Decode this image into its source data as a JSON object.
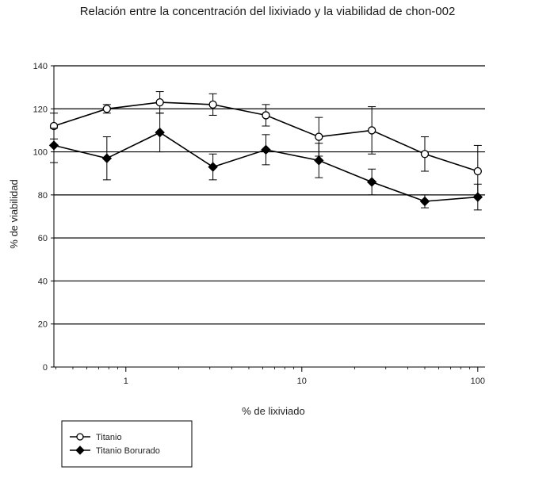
{
  "chart_data": {
    "type": "line",
    "title": "Relación entre la concentración del lixiviado y la viabilidad de chon-002",
    "xlabel": "% de lixiviado",
    "ylabel": "% de viabilidad",
    "x_scale": "log",
    "xlim": [
      0.39,
      110
    ],
    "ylim": [
      0,
      140
    ],
    "x_ticks": [
      1,
      10,
      100
    ],
    "x_tick_labels": [
      "1",
      "10",
      "100"
    ],
    "y_ticks": [
      0,
      20,
      40,
      60,
      80,
      100,
      120,
      140
    ],
    "y_tick_labels": [
      "0",
      "20",
      "40",
      "60",
      "80",
      "100",
      "120",
      "140"
    ],
    "grid": "horizontal",
    "legend_position": "bottom-left, below plot",
    "x": [
      0.39,
      0.78,
      1.56,
      3.125,
      6.25,
      12.5,
      25,
      50,
      100
    ],
    "series": [
      {
        "name": "Titanio",
        "marker": "open-circle",
        "values": [
          112,
          120,
          123,
          122,
          117,
          107,
          110,
          99,
          91
        ],
        "errors": [
          6,
          2,
          5,
          5,
          5,
          9,
          11,
          8,
          12
        ]
      },
      {
        "name": "Titanio Borurado",
        "marker": "filled-diamond",
        "values": [
          103,
          97,
          109,
          93,
          101,
          96,
          86,
          77,
          79
        ],
        "errors": [
          8,
          10,
          9,
          6,
          7,
          8,
          6,
          3,
          6
        ]
      }
    ],
    "colors": {
      "line": "#000000",
      "grid": "#000000"
    }
  }
}
